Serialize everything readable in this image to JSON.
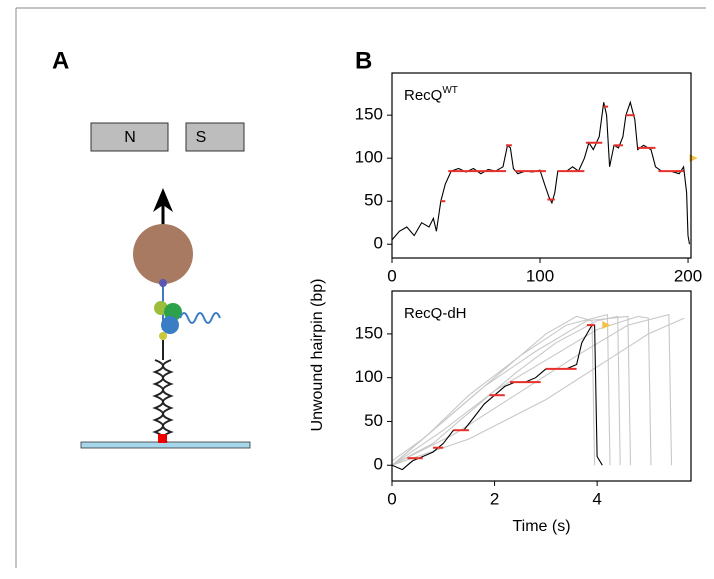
{
  "panels": {
    "a": "A",
    "b": "B",
    "magnet_n": "N",
    "magnet_s": "S"
  },
  "ylabel": "Unwound hairpin (bp)",
  "chart_data": [
    {
      "type": "line",
      "title": "RecQ",
      "title_sup": "WT",
      "xlim": [
        0,
        202
      ],
      "xticks": [
        0,
        100,
        200
      ],
      "ylim": [
        -16,
        199
      ],
      "yticks": [
        0,
        50,
        100,
        150
      ],
      "end_marker": {
        "x": 201,
        "y": 100,
        "color": "#f5c242"
      },
      "series": [
        {
          "color": "#000000",
          "x": [
            0,
            5,
            10,
            15,
            20,
            25,
            28,
            30,
            33,
            36,
            40,
            45,
            50,
            55,
            60,
            65,
            70,
            75,
            78,
            80,
            82,
            85,
            90,
            95,
            100,
            103,
            106,
            108,
            110,
            112,
            118,
            122,
            126,
            130,
            133,
            136,
            140,
            143,
            145,
            147,
            150,
            153,
            156,
            158,
            161,
            164,
            166,
            170,
            175,
            178,
            182,
            188,
            194,
            197,
            199,
            200,
            201
          ],
          "values": [
            5,
            15,
            20,
            10,
            25,
            20,
            30,
            15,
            50,
            70,
            85,
            88,
            84,
            88,
            82,
            87,
            85,
            90,
            115,
            112,
            88,
            82,
            85,
            84,
            86,
            70,
            55,
            48,
            60,
            85,
            85,
            90,
            85,
            100,
            118,
            110,
            125,
            165,
            150,
            90,
            115,
            112,
            125,
            150,
            165,
            145,
            110,
            115,
            110,
            90,
            85,
            85,
            82,
            90,
            60,
            10,
            0
          ]
        },
        {
          "color": "#e8302a",
          "x": [
            33,
            36,
            null,
            38,
            77,
            null,
            77,
            81,
            null,
            83,
            104,
            null,
            105,
            110,
            null,
            112,
            130,
            null,
            131,
            142,
            null,
            143,
            146,
            null,
            150,
            156,
            null,
            158,
            164,
            null,
            166,
            178,
            null,
            180,
            197
          ],
          "values": [
            50,
            50,
            null,
            85,
            85,
            null,
            115,
            115,
            null,
            85,
            85,
            null,
            52,
            52,
            null,
            85,
            85,
            null,
            118,
            118,
            null,
            160,
            160,
            null,
            115,
            115,
            null,
            150,
            150,
            null,
            112,
            112,
            null,
            85,
            85
          ]
        }
      ]
    },
    {
      "type": "line",
      "title": "RecQ-dH",
      "xlabel": "Time (s)",
      "xlim": [
        0,
        5.83
      ],
      "xticks": [
        0,
        2,
        4
      ],
      "ylim": [
        -18,
        199
      ],
      "yticks": [
        0,
        50,
        100,
        150
      ],
      "end_marker": {
        "x": 4.1,
        "y": 160,
        "color": "#f5c242"
      },
      "series": [
        {
          "color": "#c8c8c8",
          "x": [
            0,
            0.8,
            1.6,
            2.4,
            3.2,
            4.0,
            4.4,
            4.45
          ],
          "values": [
            0,
            25,
            65,
            105,
            140,
            165,
            170,
            0
          ]
        },
        {
          "color": "#c8c8c8",
          "x": [
            0,
            1,
            2,
            3,
            4,
            4.8,
            5.0,
            5.05
          ],
          "values": [
            0,
            40,
            85,
            120,
            155,
            170,
            168,
            0
          ]
        },
        {
          "color": "#c8c8c8",
          "x": [
            0,
            0.6,
            1.4,
            2.2,
            3.0,
            3.6,
            3.9,
            3.95
          ],
          "values": [
            5,
            30,
            70,
            110,
            150,
            170,
            165,
            0
          ]
        },
        {
          "color": "#c8c8c8",
          "x": [
            0,
            1.2,
            2.4,
            3.6,
            4.6,
            5.4,
            5.45
          ],
          "values": [
            0,
            35,
            80,
            125,
            160,
            172,
            0
          ]
        },
        {
          "color": "#c8c8c8",
          "x": [
            0,
            0.9,
            1.8,
            2.8,
            3.8,
            4.6,
            4.65
          ],
          "values": [
            0,
            45,
            90,
            130,
            165,
            170,
            0
          ]
        },
        {
          "color": "#c8c8c8",
          "x": [
            0,
            1.5,
            3.0,
            4.2,
            5.0,
            5.7
          ],
          "values": [
            0,
            30,
            75,
            120,
            150,
            168
          ]
        },
        {
          "color": "#c8c8c8",
          "x": [
            0,
            0.7,
            1.5,
            2.5,
            3.4,
            4.2,
            4.25
          ],
          "values": [
            0,
            35,
            80,
            125,
            160,
            172,
            0
          ]
        },
        {
          "color": "#000000",
          "x": [
            0,
            0.2,
            0.4,
            0.6,
            0.8,
            1,
            1.2,
            1.4,
            1.6,
            1.8,
            2,
            2.2,
            2.4,
            2.6,
            2.8,
            3,
            3.2,
            3.4,
            3.6,
            3.7,
            3.8,
            3.9,
            3.95,
            4.0,
            4.1
          ],
          "values": [
            0,
            -5,
            5,
            10,
            15,
            25,
            40,
            40,
            55,
            70,
            80,
            90,
            95,
            95,
            100,
            110,
            110,
            110,
            115,
            140,
            150,
            160,
            160,
            10,
            0
          ]
        },
        {
          "color": "#e8302a",
          "x": [
            0.3,
            0.6,
            null,
            0.8,
            1.0,
            null,
            1.2,
            1.5,
            null,
            1.9,
            2.2,
            null,
            2.3,
            2.9,
            null,
            3.0,
            3.6,
            null,
            3.8,
            3.95
          ],
          "values": [
            8,
            8,
            null,
            20,
            20,
            null,
            40,
            40,
            null,
            80,
            80,
            null,
            95,
            95,
            null,
            110,
            110,
            null,
            160,
            160
          ]
        }
      ]
    }
  ]
}
